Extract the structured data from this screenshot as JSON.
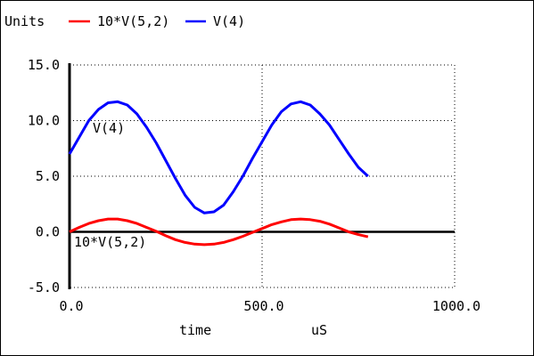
{
  "legend": {
    "prefix": "Units",
    "items": [
      {
        "label": "10*V(5,2)",
        "color": "#ff0000"
      },
      {
        "label": "V(4)",
        "color": "#0000ff"
      }
    ]
  },
  "chart_data": {
    "type": "line",
    "xlabel": "time",
    "xunit": "uS",
    "ylabel": "",
    "xlim": [
      0,
      1000
    ],
    "ylim": [
      -5,
      15
    ],
    "x_ticks": [
      "0.0",
      "500.0",
      "1000.0"
    ],
    "y_ticks": [
      "15.0",
      "10.0",
      "5.0",
      "0.0",
      "-5.0"
    ],
    "grid": true,
    "legend_position": "top-left",
    "series": [
      {
        "name": "V(4)",
        "color": "#0000ff",
        "inline_label": "V(4)",
        "x": [
          0,
          25,
          50,
          75,
          100,
          125,
          150,
          175,
          200,
          225,
          250,
          275,
          300,
          325,
          350,
          375,
          400,
          425,
          450,
          475,
          500,
          525,
          550,
          575,
          600,
          625,
          650,
          675,
          700,
          725,
          750,
          775
        ],
        "y": [
          7.0,
          8.5,
          10.0,
          11.0,
          11.6,
          11.7,
          11.4,
          10.6,
          9.4,
          8.0,
          6.4,
          4.8,
          3.3,
          2.2,
          1.7,
          1.8,
          2.4,
          3.6,
          5.0,
          6.6,
          8.1,
          9.6,
          10.8,
          11.5,
          11.7,
          11.4,
          10.6,
          9.6,
          8.3,
          7.0,
          5.8,
          5.0
        ]
      },
      {
        "name": "10*V(5,2)",
        "color": "#ff0000",
        "inline_label": "10*V(5,2)",
        "x": [
          0,
          25,
          50,
          75,
          100,
          125,
          150,
          175,
          200,
          225,
          250,
          275,
          300,
          325,
          350,
          375,
          400,
          425,
          450,
          475,
          500,
          525,
          550,
          575,
          600,
          625,
          650,
          675,
          700,
          725,
          750,
          775
        ],
        "y": [
          0.0,
          0.4,
          0.75,
          1.0,
          1.15,
          1.15,
          1.0,
          0.75,
          0.4,
          0.05,
          -0.35,
          -0.7,
          -0.95,
          -1.1,
          -1.15,
          -1.1,
          -0.95,
          -0.7,
          -0.4,
          -0.05,
          0.3,
          0.65,
          0.9,
          1.1,
          1.15,
          1.1,
          0.95,
          0.7,
          0.35,
          0.0,
          -0.25,
          -0.45
        ]
      }
    ]
  }
}
